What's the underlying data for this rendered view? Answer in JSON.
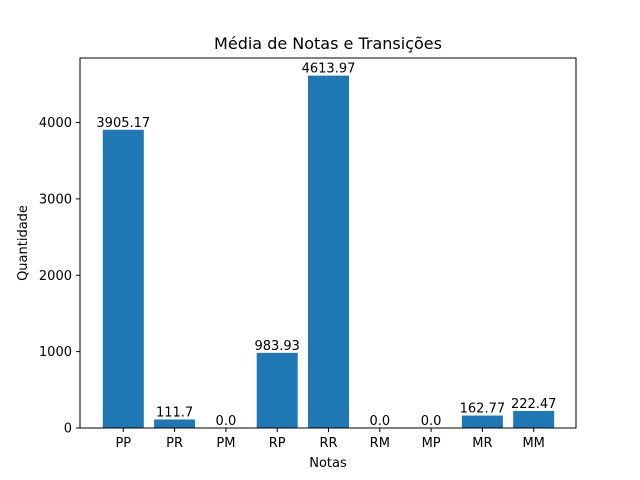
{
  "chart_data": {
    "type": "bar",
    "title": "Média de Notas e Transições",
    "xlabel": "Notas",
    "ylabel": "Quantidade",
    "categories": [
      "PP",
      "PR",
      "PM",
      "RP",
      "RR",
      "RM",
      "MP",
      "MR",
      "MM"
    ],
    "values": [
      3905.17,
      111.7,
      0.0,
      983.93,
      4613.97,
      0.0,
      0.0,
      162.77,
      222.47
    ],
    "data_labels": [
      "3905.17",
      "111.7",
      "0.0",
      "983.93",
      "4613.97",
      "0.0",
      "0.0",
      "162.77",
      "222.47"
    ],
    "ylim": [
      0,
      4844.67
    ],
    "yticks": [
      0,
      1000,
      2000,
      3000,
      4000
    ],
    "grid": false,
    "legend": "none",
    "bar_color": "#1f77b4"
  }
}
